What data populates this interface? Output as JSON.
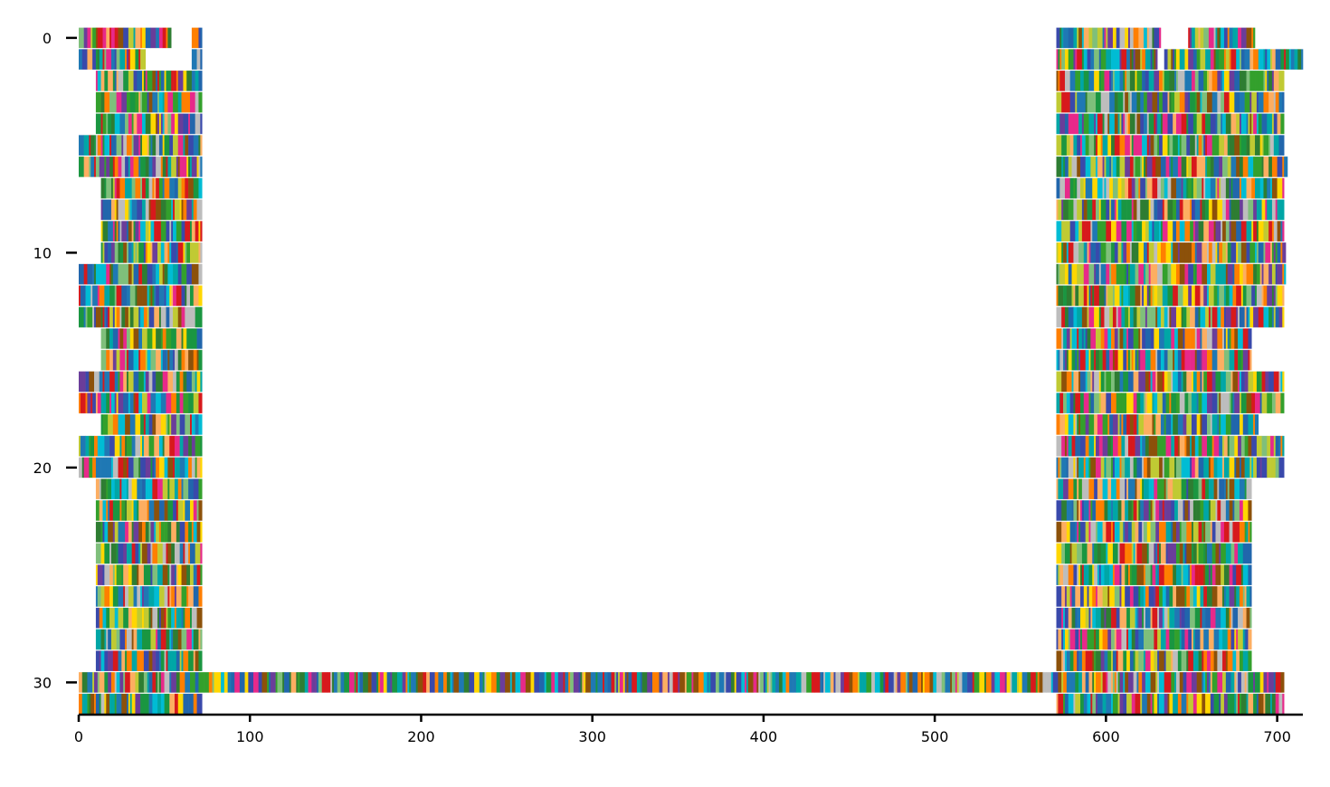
{
  "chart_data": {
    "type": "heatmap",
    "description_kind": "multiple sequence alignment",
    "title": "",
    "xlabel": "",
    "ylabel": "",
    "xlim": [
      0,
      715
    ],
    "ylim": [
      31.5,
      -0.5
    ],
    "x_ticks": [
      0,
      100,
      200,
      300,
      400,
      500,
      600,
      700
    ],
    "x_tick_labels": [
      "0",
      "100",
      "200",
      "300",
      "400",
      "500",
      "600",
      "700"
    ],
    "y_ticks": [
      0,
      10,
      20,
      30
    ],
    "y_tick_labels": [
      "0",
      "10",
      "20",
      "30"
    ],
    "y_axis_inverted": true,
    "grid": false,
    "legend": "none",
    "palette": [
      "#1a9641",
      "#2166ac",
      "#d7191c",
      "#fdae61",
      "#ffd700",
      "#00bcd4",
      "#6a3d9a",
      "#33a02c",
      "#8c510a",
      "#7fbf7b",
      "#1f78b4",
      "#e7298a",
      "#bdbdbd",
      "#ff7f00",
      "#00a6a6",
      "#3949ab",
      "#2e7d32",
      "#c0ca33"
    ],
    "rows": [
      {
        "row": 0,
        "segments": [
          [
            0,
            54
          ],
          [
            66,
            72
          ],
          [
            571,
            632
          ],
          [
            648,
            687
          ]
        ]
      },
      {
        "row": 1,
        "segments": [
          [
            0,
            39
          ],
          [
            66,
            72
          ],
          [
            571,
            630
          ],
          [
            634,
            715
          ]
        ]
      },
      {
        "row": 2,
        "segments": [
          [
            10,
            72
          ],
          [
            571,
            704
          ]
        ]
      },
      {
        "row": 3,
        "segments": [
          [
            10,
            72
          ],
          [
            571,
            704
          ]
        ]
      },
      {
        "row": 4,
        "segments": [
          [
            10,
            72
          ],
          [
            571,
            704
          ]
        ]
      },
      {
        "row": 5,
        "segments": [
          [
            0,
            72
          ],
          [
            571,
            704
          ]
        ]
      },
      {
        "row": 6,
        "segments": [
          [
            0,
            72
          ],
          [
            571,
            706
          ]
        ]
      },
      {
        "row": 7,
        "segments": [
          [
            13,
            72
          ],
          [
            571,
            704
          ]
        ]
      },
      {
        "row": 8,
        "segments": [
          [
            13,
            72
          ],
          [
            571,
            704
          ]
        ]
      },
      {
        "row": 9,
        "segments": [
          [
            13,
            72
          ],
          [
            571,
            704
          ]
        ]
      },
      {
        "row": 10,
        "segments": [
          [
            13,
            72
          ],
          [
            571,
            705
          ]
        ]
      },
      {
        "row": 11,
        "segments": [
          [
            0,
            72
          ],
          [
            571,
            705
          ]
        ]
      },
      {
        "row": 12,
        "segments": [
          [
            0,
            72
          ],
          [
            571,
            704
          ]
        ]
      },
      {
        "row": 13,
        "segments": [
          [
            0,
            72
          ],
          [
            571,
            704
          ]
        ]
      },
      {
        "row": 14,
        "segments": [
          [
            13,
            72
          ],
          [
            571,
            685
          ]
        ]
      },
      {
        "row": 15,
        "segments": [
          [
            13,
            72
          ],
          [
            571,
            685
          ]
        ]
      },
      {
        "row": 16,
        "segments": [
          [
            0,
            72
          ],
          [
            571,
            704
          ]
        ]
      },
      {
        "row": 17,
        "segments": [
          [
            0,
            72
          ],
          [
            571,
            704
          ]
        ]
      },
      {
        "row": 18,
        "segments": [
          [
            13,
            72
          ],
          [
            571,
            689
          ]
        ]
      },
      {
        "row": 19,
        "segments": [
          [
            0,
            72
          ],
          [
            571,
            704
          ]
        ]
      },
      {
        "row": 20,
        "segments": [
          [
            0,
            72
          ],
          [
            571,
            704
          ]
        ]
      },
      {
        "row": 21,
        "segments": [
          [
            10,
            72
          ],
          [
            571,
            685
          ]
        ]
      },
      {
        "row": 22,
        "segments": [
          [
            10,
            72
          ],
          [
            571,
            685
          ]
        ]
      },
      {
        "row": 23,
        "segments": [
          [
            10,
            72
          ],
          [
            571,
            685
          ]
        ]
      },
      {
        "row": 24,
        "segments": [
          [
            10,
            72
          ],
          [
            571,
            685
          ]
        ]
      },
      {
        "row": 25,
        "segments": [
          [
            10,
            72
          ],
          [
            571,
            685
          ]
        ]
      },
      {
        "row": 26,
        "segments": [
          [
            10,
            72
          ],
          [
            571,
            685
          ]
        ]
      },
      {
        "row": 27,
        "segments": [
          [
            10,
            72
          ],
          [
            571,
            685
          ]
        ]
      },
      {
        "row": 28,
        "segments": [
          [
            10,
            72
          ],
          [
            571,
            685
          ]
        ]
      },
      {
        "row": 29,
        "segments": [
          [
            10,
            72
          ],
          [
            571,
            685
          ]
        ]
      },
      {
        "row": 30,
        "segments": [
          [
            0,
            704
          ]
        ]
      },
      {
        "row": 31,
        "segments": [
          [
            0,
            72
          ],
          [
            571,
            704
          ]
        ]
      }
    ]
  }
}
